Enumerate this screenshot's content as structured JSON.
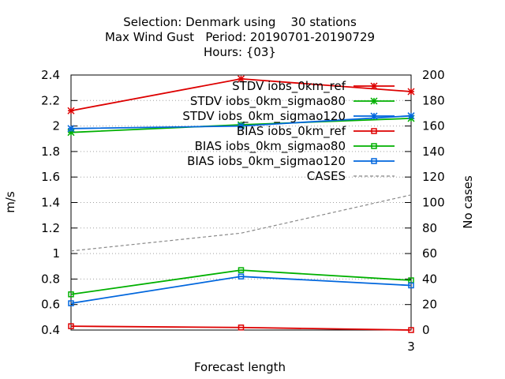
{
  "chart_data": {
    "type": "line",
    "title_lines": [
      "Selection: Denmark using    30 stations",
      "Max Wind Gust   Period: 20190701-20190729",
      "Hours: {03}"
    ],
    "xlabel": "Forecast length",
    "ylabel": "m/s",
    "y2label": "No cases",
    "x_tick_labels": [
      "3"
    ],
    "x": [
      0,
      1,
      2
    ],
    "xlim": [
      0,
      2
    ],
    "ylim": [
      0.4,
      2.4
    ],
    "yticks": [
      0.4,
      0.6,
      0.8,
      1,
      1.2,
      1.4,
      1.6,
      1.8,
      2,
      2.2,
      2.4
    ],
    "y2lim": [
      0,
      200
    ],
    "y2ticks": [
      0,
      20,
      40,
      60,
      80,
      100,
      120,
      140,
      160,
      180,
      200
    ],
    "grid": true,
    "legend_position": "top-right",
    "series": [
      {
        "name": "STDV iobs_0km_ref",
        "axis": "y",
        "marker": "star",
        "dash": false,
        "color": "#dd0000",
        "values": [
          2.12,
          2.37,
          2.27
        ]
      },
      {
        "name": "STDV iobs_0km_sigmao80",
        "axis": "y",
        "marker": "star",
        "dash": false,
        "color": "#00b000",
        "values": [
          1.95,
          2.01,
          2.06
        ]
      },
      {
        "name": "STDV iobs_0km_sigmao120",
        "axis": "y",
        "marker": "star",
        "dash": false,
        "color": "#0066dd",
        "values": [
          1.98,
          2.0,
          2.08
        ]
      },
      {
        "name": "BIAS iobs_0km_ref",
        "axis": "y",
        "marker": "square",
        "dash": false,
        "color": "#dd0000",
        "values": [
          0.43,
          0.42,
          0.4
        ]
      },
      {
        "name": "BIAS iobs_0km_sigmao80",
        "axis": "y",
        "marker": "square",
        "dash": false,
        "color": "#00b000",
        "values": [
          0.68,
          0.87,
          0.79
        ]
      },
      {
        "name": "BIAS iobs_0km_sigmao120",
        "axis": "y",
        "marker": "square",
        "dash": false,
        "color": "#0066dd",
        "values": [
          0.61,
          0.82,
          0.75
        ]
      },
      {
        "name": "CASES",
        "axis": "y2",
        "marker": "none",
        "dash": true,
        "color": "#888888",
        "values": [
          62,
          76,
          106
        ]
      }
    ]
  }
}
